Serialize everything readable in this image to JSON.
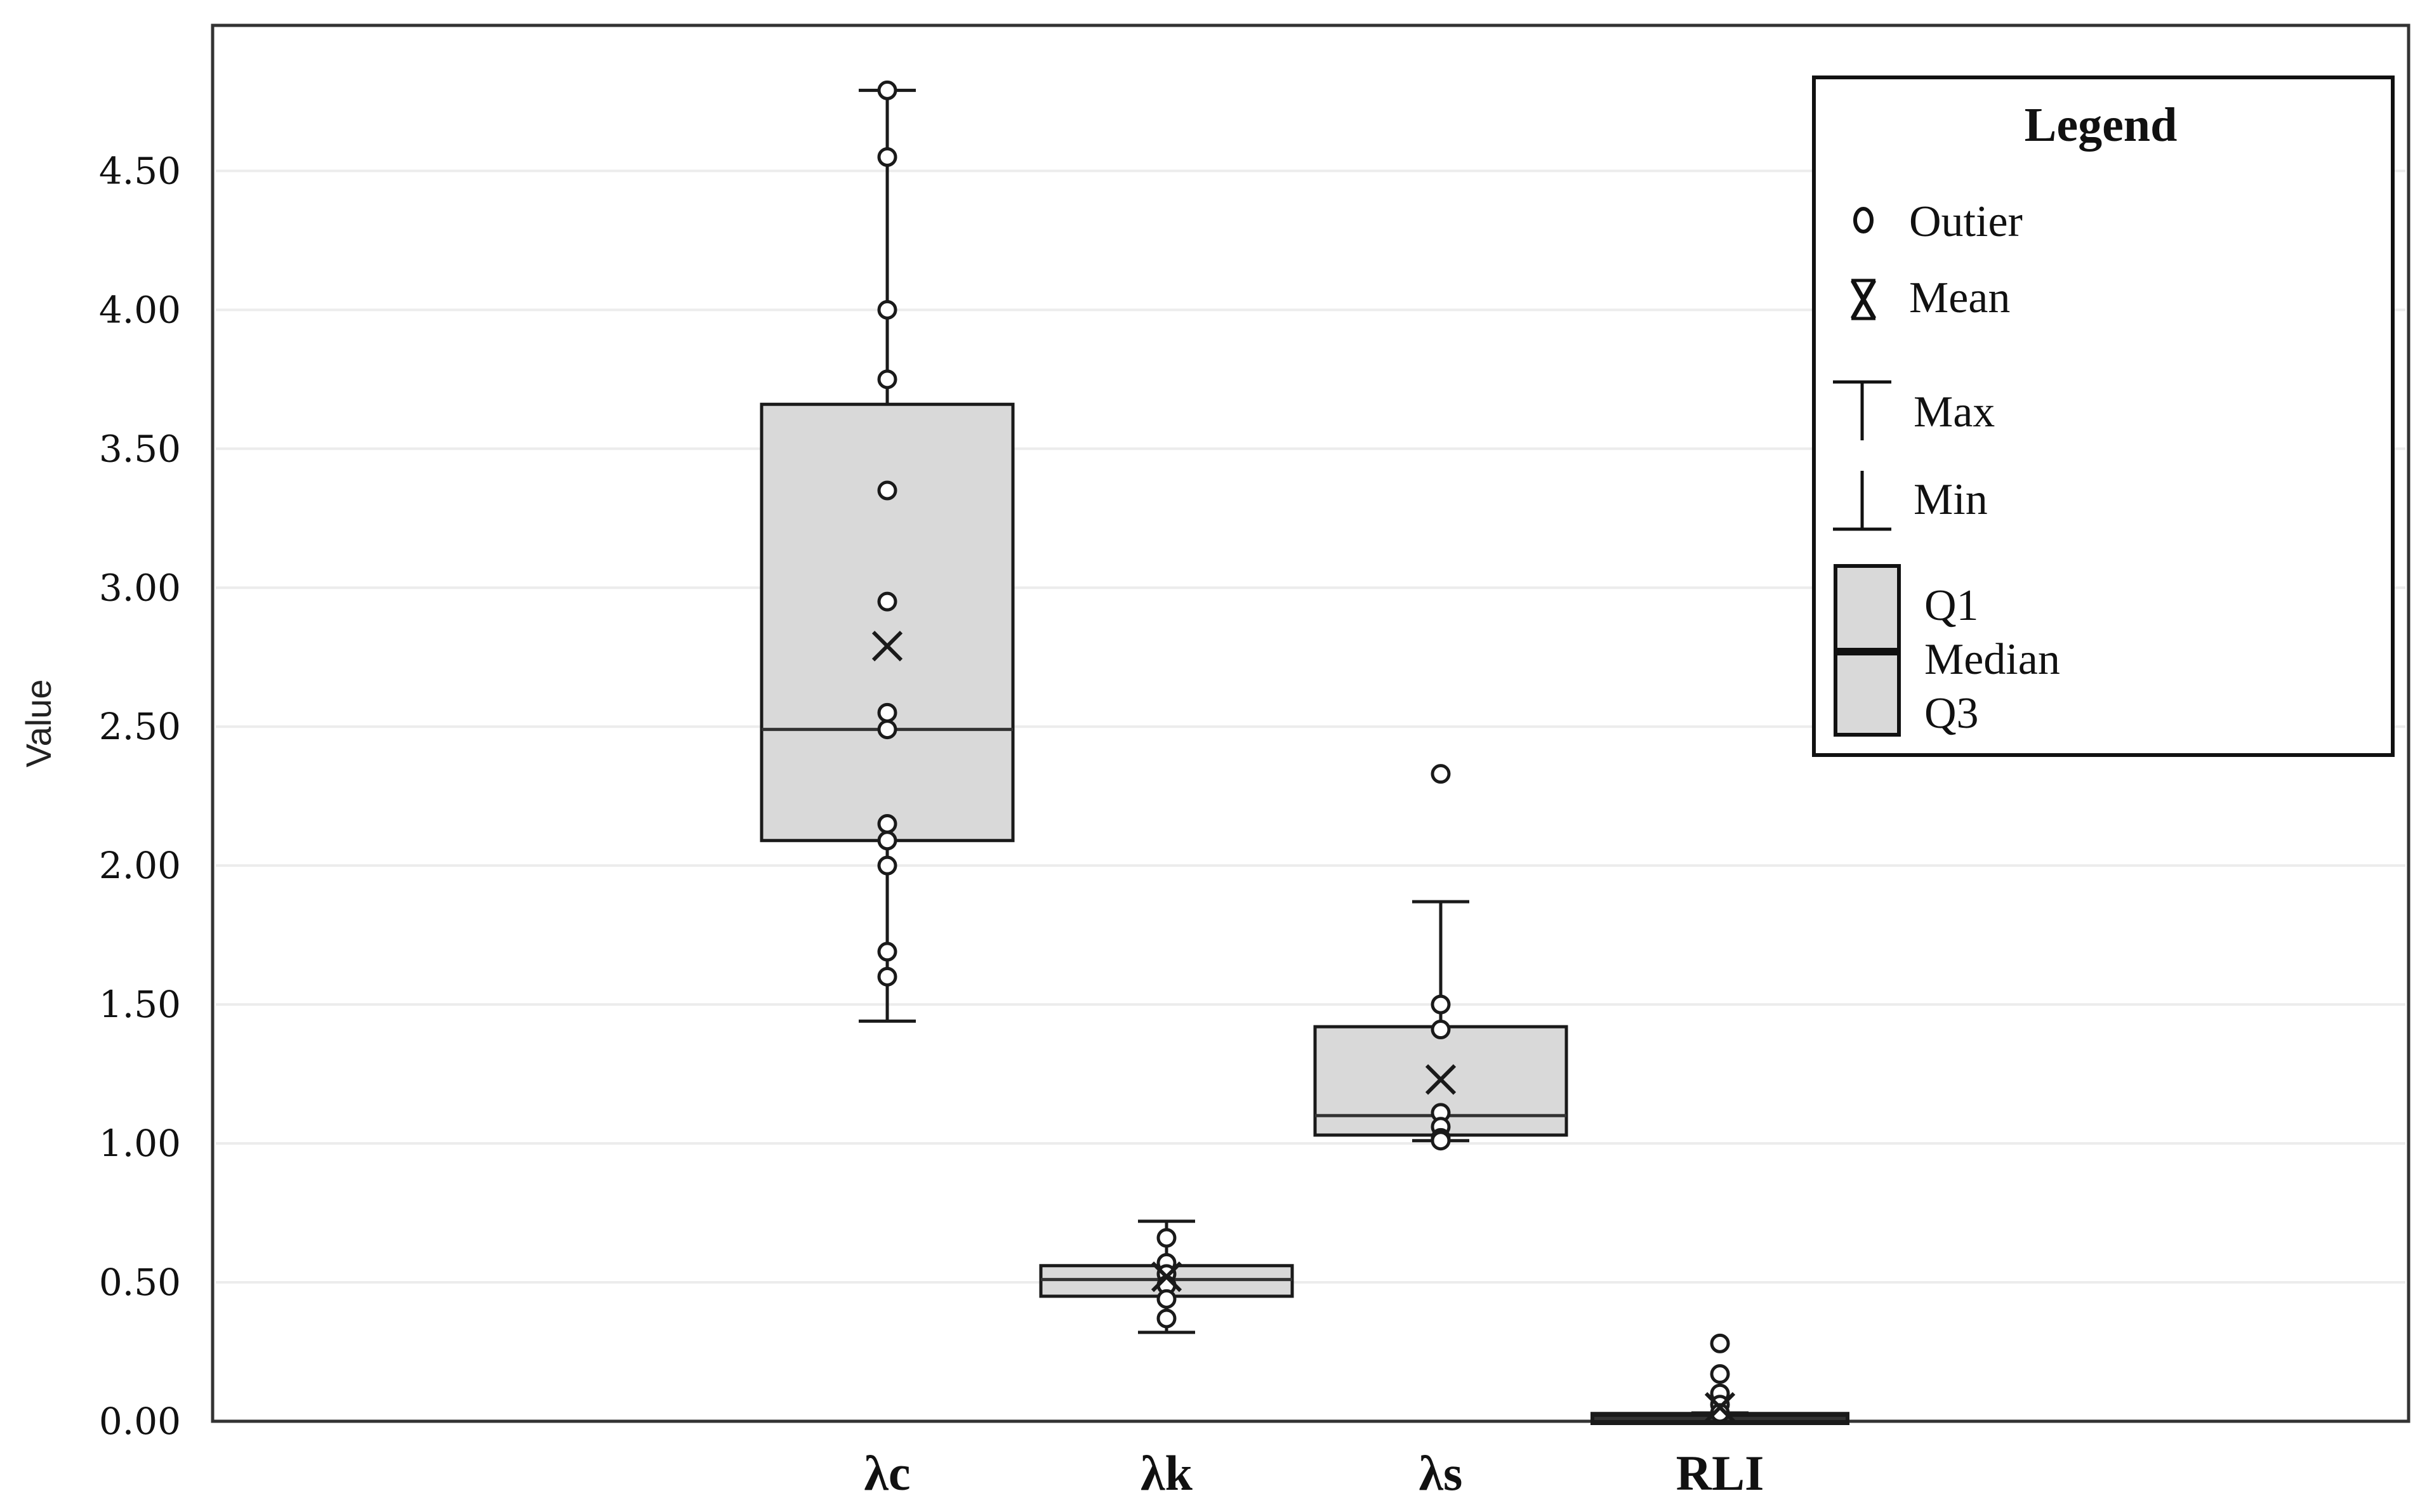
{
  "chart_data": {
    "type": "boxplot",
    "ylabel": "Value",
    "ylim": [
      0,
      4.8
    ],
    "yticks": [
      "0.00",
      "0.50",
      "1.00",
      "1.50",
      "2.00",
      "2.50",
      "3.00",
      "3.50",
      "4.00",
      "4.50"
    ],
    "grid": true,
    "legend_placement": "top-right",
    "categories": [
      "λc",
      "λk",
      "λs",
      "RLI"
    ],
    "series": [
      {
        "category": "λc",
        "min": 1.44,
        "q1": 2.09,
        "median": 2.49,
        "q3": 3.66,
        "max": 4.79,
        "mean": 2.79,
        "points": [
          4.79,
          4.55,
          4.0,
          3.75,
          3.35,
          2.95,
          2.55,
          2.49,
          2.15,
          2.09,
          2.0,
          1.69,
          1.6
        ]
      },
      {
        "category": "λk",
        "min": 0.32,
        "q1": 0.45,
        "median": 0.51,
        "q3": 0.56,
        "max": 0.72,
        "mean": 0.52,
        "points": [
          0.66,
          0.57,
          0.53,
          0.49,
          0.44,
          0.37
        ]
      },
      {
        "category": "λs",
        "min": 1.01,
        "q1": 1.03,
        "median": 1.1,
        "q3": 1.42,
        "max": 1.87,
        "mean": 1.23,
        "points": [
          2.33,
          1.5,
          1.41,
          1.11,
          1.06,
          1.02,
          1.01
        ]
      },
      {
        "category": "RLI",
        "min": 0.0,
        "q1": 0.0,
        "median": 0.01,
        "q3": 0.02,
        "max": 0.03,
        "mean": 0.05,
        "points": [
          0.28,
          0.17,
          0.1,
          0.06,
          0.03
        ]
      }
    ],
    "colors": {
      "box_fill": "#d9d9d9",
      "stroke": "#1a1a1a",
      "grid": "#ececec"
    }
  },
  "legend": {
    "title": "Legend",
    "outlier_label": "Outier",
    "mean_label": "Mean",
    "max_label": "Max",
    "min_label": "Min",
    "q1_label": "Q1",
    "median_label": "Median",
    "q3_label": "Q3",
    "outlier_icon": "circle-icon",
    "mean_icon": "x-mark-icon"
  }
}
